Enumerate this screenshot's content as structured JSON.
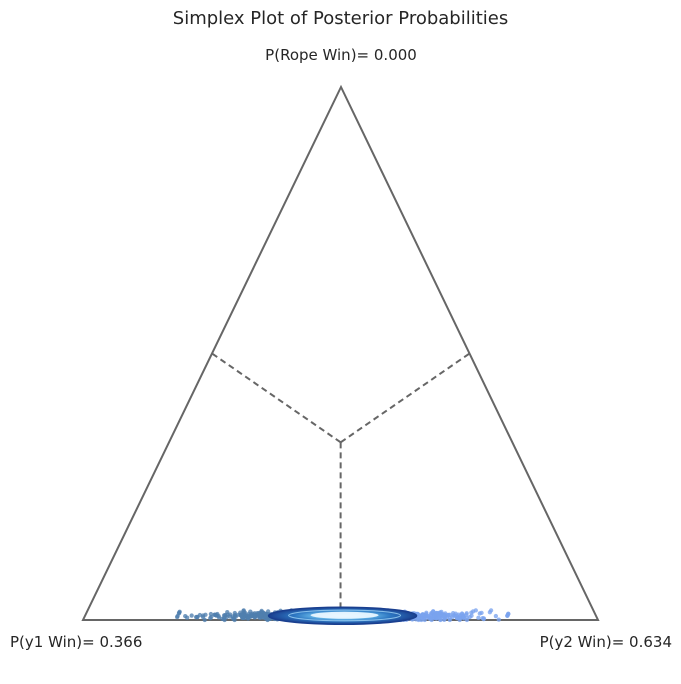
{
  "chart_data": {
    "type": "scatter",
    "title": "Simplex Plot of Posterior Probabilities",
    "vertex_labels": {
      "top": "P(Rope Win)= 0.000",
      "left": "P(y1 Win)= 0.366",
      "right": "P(y2 Win)= 0.634"
    },
    "probabilities": {
      "rope": 0.0,
      "y1": 0.366,
      "y2": 0.634
    },
    "posterior_cloud": {
      "center": {
        "y1": 0.5,
        "y2": 0.5,
        "rope": 0.008
      },
      "y2_spread": [
        0.18,
        0.82
      ],
      "rope_spread": [
        0.0,
        0.018
      ]
    },
    "colors": {
      "triangle": "#666666",
      "divider": "#666666",
      "points_left": "#4f7fae",
      "points_right": "#7aa3ee",
      "density_outer": "#1a3f8f",
      "density_inner": "#e8f6ff"
    }
  }
}
